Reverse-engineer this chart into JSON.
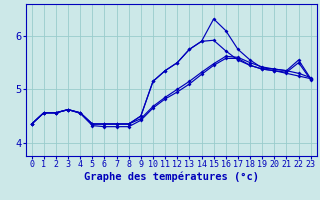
{
  "background_color": "#cce8e8",
  "grid_color": "#99cccc",
  "line_color": "#0000bb",
  "xlabel": "Graphe des températures (°c)",
  "xlabel_fontsize": 7.5,
  "tick_fontsize": 6,
  "xlim": [
    -0.5,
    23.5
  ],
  "ylim": [
    3.75,
    6.6
  ],
  "yticks": [
    4,
    5,
    6
  ],
  "xticks": [
    0,
    1,
    2,
    3,
    4,
    5,
    6,
    7,
    8,
    9,
    10,
    11,
    12,
    13,
    14,
    15,
    16,
    17,
    18,
    19,
    20,
    21,
    22,
    23
  ],
  "curve_top": [
    4.35,
    4.56,
    4.56,
    4.62,
    4.56,
    4.35,
    4.35,
    4.35,
    4.35,
    4.5,
    5.15,
    5.35,
    5.5,
    5.75,
    5.9,
    6.32,
    6.1,
    5.75,
    5.55,
    5.4,
    5.38,
    5.35,
    5.55,
    5.2
  ],
  "curve_mid": [
    4.35,
    4.56,
    4.56,
    4.62,
    4.56,
    4.35,
    4.35,
    4.35,
    4.35,
    4.5,
    5.15,
    5.35,
    5.5,
    5.75,
    5.9,
    5.92,
    5.72,
    5.55,
    5.45,
    5.38,
    5.35,
    5.32,
    5.5,
    5.18
  ],
  "curve_straight": [
    4.35,
    4.56,
    4.56,
    4.62,
    4.56,
    4.35,
    4.35,
    4.35,
    4.35,
    4.45,
    4.68,
    4.85,
    5.0,
    5.15,
    5.32,
    5.48,
    5.62,
    5.6,
    5.5,
    5.42,
    5.38,
    5.35,
    5.3,
    5.22
  ],
  "curve_dip": [
    4.35,
    4.56,
    4.56,
    4.62,
    4.55,
    4.32,
    4.3,
    4.3,
    4.3,
    4.42,
    4.65,
    4.82,
    4.95,
    5.1,
    5.28,
    5.45,
    5.58,
    5.58,
    5.45,
    5.38,
    5.35,
    5.3,
    5.25,
    5.2
  ]
}
